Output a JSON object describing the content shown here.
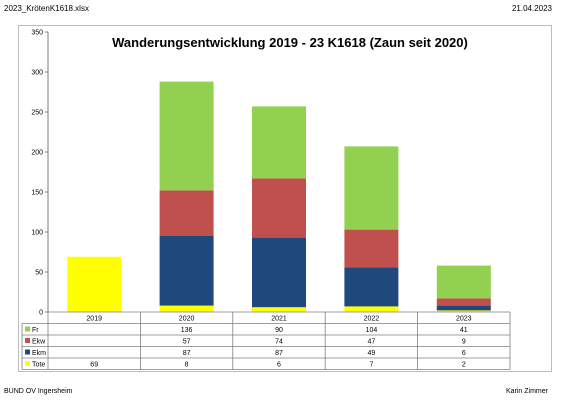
{
  "header": {
    "filename": "2023_KrötenK1618.xlsx",
    "date": "21.04.2023"
  },
  "footer": {
    "left": "BUND OV Ingersheim",
    "right": "Karin Zimmer"
  },
  "colors": {
    "Fr": "#92d050",
    "Ekw": "#c0504d",
    "Ekm": "#1f497d",
    "Tote": "#ffff00"
  },
  "chart_data": {
    "type": "bar",
    "stacked": true,
    "title": "Wanderungsentwicklung 2019 - 23 K1618 (Zaun seit 2020)",
    "categories": [
      "2019",
      "2020",
      "2021",
      "2022",
      "2023"
    ],
    "ylim": [
      0,
      350
    ],
    "yticks": [
      "0",
      "50",
      "100",
      "150",
      "200",
      "250",
      "300",
      "350"
    ],
    "grid": false,
    "legend": "data-table",
    "series": [
      {
        "name": "Fr",
        "values": [
          null,
          136,
          90,
          104,
          41
        ],
        "labels": [
          "",
          "136",
          "90",
          "104",
          "41"
        ]
      },
      {
        "name": "Ekw",
        "values": [
          null,
          57,
          74,
          47,
          9
        ],
        "labels": [
          "",
          "57",
          "74",
          "47",
          "9"
        ]
      },
      {
        "name": "Ekm",
        "values": [
          null,
          87,
          87,
          49,
          6
        ],
        "labels": [
          "",
          "87",
          "87",
          "49",
          "6"
        ]
      },
      {
        "name": "Tote",
        "values": [
          69,
          8,
          6,
          7,
          2
        ],
        "labels": [
          "69",
          "8",
          "6",
          "7",
          "2"
        ]
      }
    ]
  }
}
